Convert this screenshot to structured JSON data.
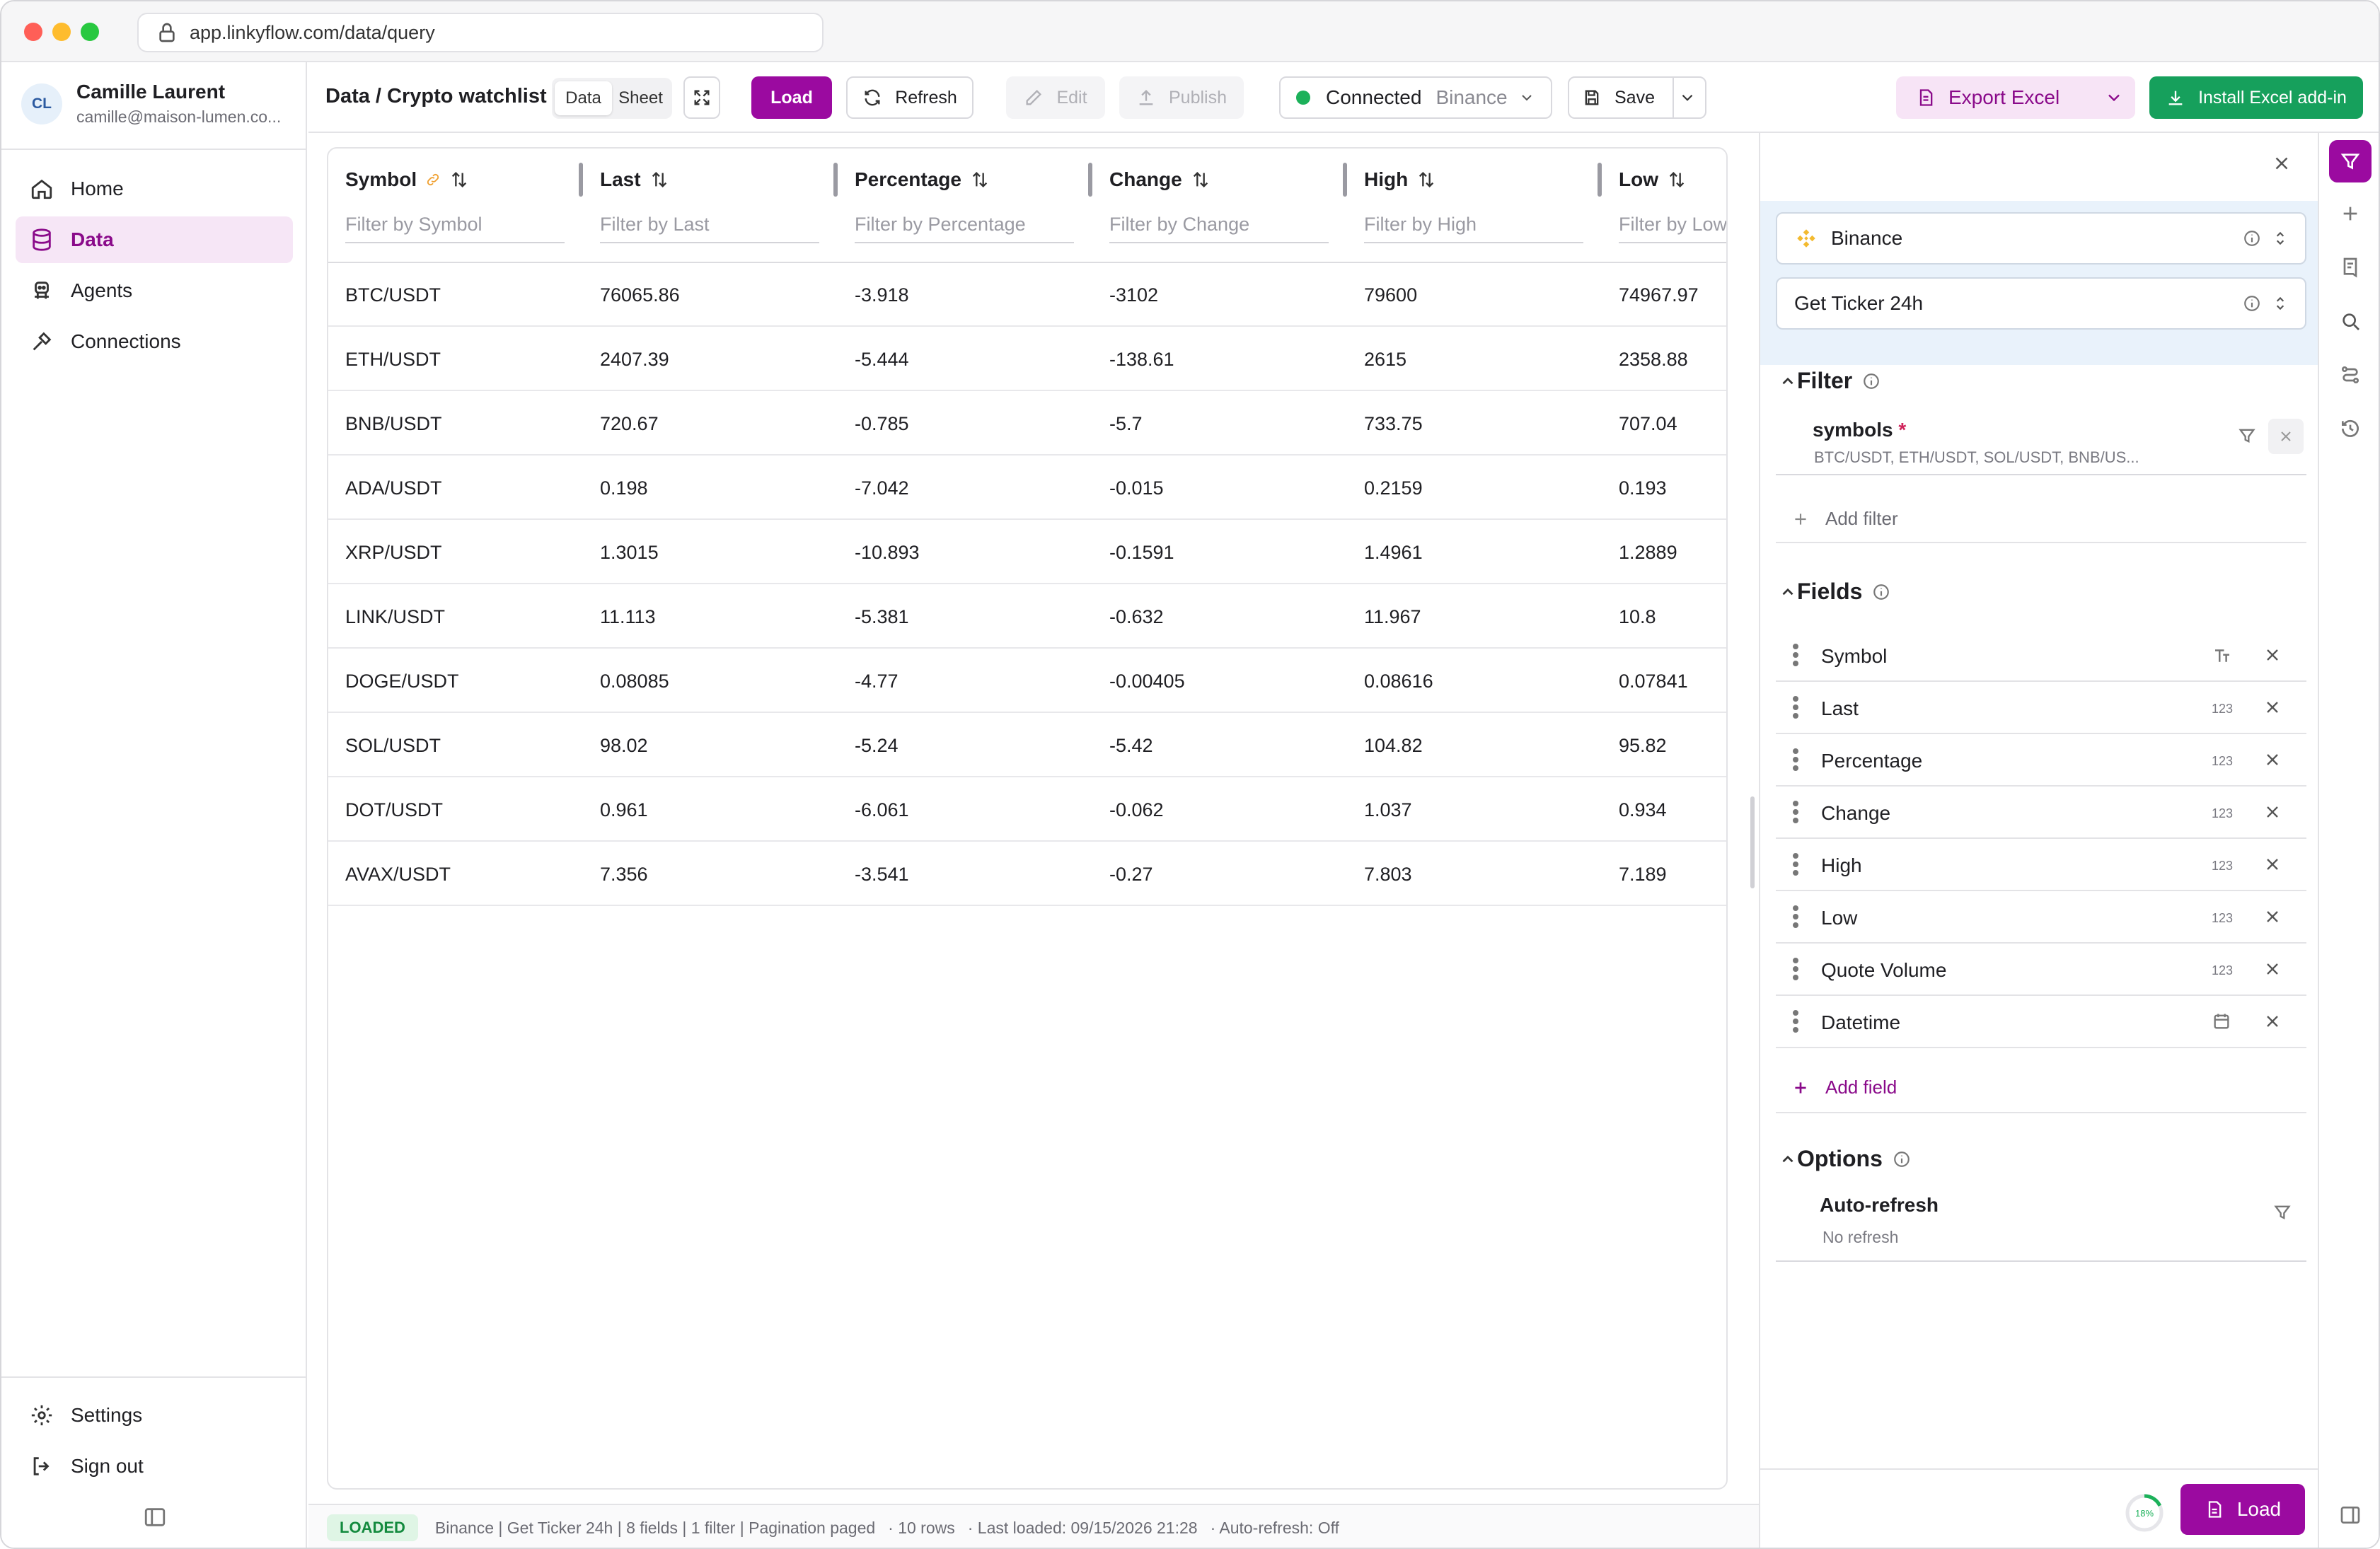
{
  "browser": {
    "url": "app.linkyflow.com/data/query"
  },
  "user": {
    "initials": "CL",
    "name": "Camille Laurent",
    "email": "camille@maison-lumen.co..."
  },
  "nav": {
    "items": [
      {
        "label": "Home",
        "icon": "home-icon"
      },
      {
        "label": "Data",
        "icon": "database-icon",
        "active": true
      },
      {
        "label": "Agents",
        "icon": "agents-icon"
      },
      {
        "label": "Connections",
        "icon": "connections-icon"
      }
    ],
    "settings": "Settings",
    "sign_out": "Sign out"
  },
  "toolbar": {
    "breadcrumb": "Data / Crypto watchlist",
    "view_data": "Data",
    "view_sheet": "Sheet",
    "load": "Load",
    "refresh": "Refresh",
    "edit": "Edit",
    "publish": "Publish",
    "connection_status": "Connected",
    "connection_name": "Binance",
    "save": "Save",
    "export": "Export Excel",
    "install": "Install Excel add-in"
  },
  "table": {
    "columns": [
      {
        "label": "Symbol",
        "filter": "Filter by Symbol"
      },
      {
        "label": "Last",
        "filter": "Filter by Last"
      },
      {
        "label": "Percentage",
        "filter": "Filter by Percentage"
      },
      {
        "label": "Change",
        "filter": "Filter by Change"
      },
      {
        "label": "High",
        "filter": "Filter by High"
      },
      {
        "label": "Low",
        "filter": "Filter by Low"
      }
    ],
    "rows": [
      [
        "BTC/USDT",
        "76065.86",
        "-3.918",
        "-3102",
        "79600",
        "74967.97"
      ],
      [
        "ETH/USDT",
        "2407.39",
        "-5.444",
        "-138.61",
        "2615",
        "2358.88"
      ],
      [
        "BNB/USDT",
        "720.67",
        "-0.785",
        "-5.7",
        "733.75",
        "707.04"
      ],
      [
        "ADA/USDT",
        "0.198",
        "-7.042",
        "-0.015",
        "0.2159",
        "0.193"
      ],
      [
        "XRP/USDT",
        "1.3015",
        "-10.893",
        "-0.1591",
        "1.4961",
        "1.2889"
      ],
      [
        "LINK/USDT",
        "11.113",
        "-5.381",
        "-0.632",
        "11.967",
        "10.8"
      ],
      [
        "DOGE/USDT",
        "0.08085",
        "-4.77",
        "-0.00405",
        "0.08616",
        "0.07841"
      ],
      [
        "SOL/USDT",
        "98.02",
        "-5.24",
        "-5.42",
        "104.82",
        "95.82"
      ],
      [
        "DOT/USDT",
        "0.961",
        "-6.061",
        "-0.062",
        "1.037",
        "0.934"
      ],
      [
        "AVAX/USDT",
        "7.356",
        "-3.541",
        "-0.27",
        "7.803",
        "7.189"
      ]
    ]
  },
  "status": {
    "badge": "LOADED",
    "summary": "Binance | Get Ticker 24h | 8 fields | 1 filter | Pagination paged",
    "rows": "· 10 rows",
    "last_loaded": "· Last loaded: 09/15/2026 21:28",
    "auto_refresh": "· Auto-refresh: Off"
  },
  "panel": {
    "source": "Binance",
    "endpoint": "Get Ticker 24h",
    "filter_title": "Filter",
    "filter_name": "symbols",
    "filter_required": "*",
    "filter_value": "BTC/USDT, ETH/USDT, SOL/USDT, BNB/US...",
    "add_filter": "Add filter",
    "fields_title": "Fields",
    "fields": [
      {
        "name": "Symbol",
        "type": "text-type-icon"
      },
      {
        "name": "Last",
        "type": "number-type-icon"
      },
      {
        "name": "Percentage",
        "type": "number-type-icon"
      },
      {
        "name": "Change",
        "type": "number-type-icon"
      },
      {
        "name": "High",
        "type": "number-type-icon"
      },
      {
        "name": "Low",
        "type": "number-type-icon"
      },
      {
        "name": "Quote Volume",
        "type": "number-type-icon"
      },
      {
        "name": "Datetime",
        "type": "calendar-type-icon"
      }
    ],
    "number_type_label": "123",
    "add_field": "Add field",
    "options_title": "Options",
    "auto_refresh_label": "Auto-refresh",
    "auto_refresh_value": "No refresh",
    "progress": "18%",
    "load": "Load"
  },
  "colors": {
    "accent": "#9b0aa0",
    "connected": "#1cb15a",
    "install": "#16a05c"
  }
}
